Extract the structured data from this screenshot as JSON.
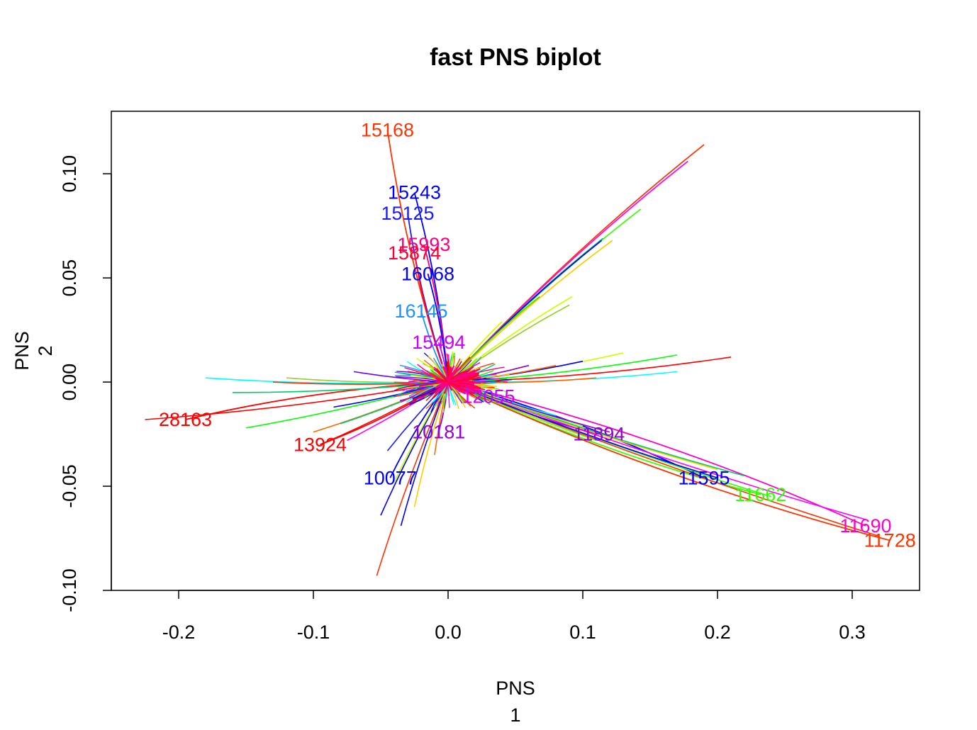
{
  "chart_data": {
    "type": "biplot",
    "title": "fast PNS biplot",
    "xlabel_line1": "PNS",
    "xlabel_line2": "1",
    "ylabel_line1": "PNS",
    "ylabel_line2": "2",
    "xlim": [
      -0.25,
      0.35
    ],
    "ylim": [
      -0.1,
      0.13
    ],
    "x_ticks": [
      -0.2,
      -0.1,
      0.0,
      0.1,
      0.2,
      0.3
    ],
    "x_tick_labels": [
      "-0.2",
      "-0.1",
      "0.0",
      "0.1",
      "0.2",
      "0.3"
    ],
    "y_ticks": [
      -0.1,
      -0.05,
      0.0,
      0.05,
      0.1
    ],
    "y_tick_labels": [
      "-0.10",
      "-0.05",
      "0.00",
      "0.05",
      "0.10"
    ],
    "grid": false,
    "labeled_vectors": [
      {
        "label": "15168",
        "x": -0.045,
        "y": 0.121,
        "color": "#ff3300"
      },
      {
        "label": "15243",
        "x": -0.025,
        "y": 0.091,
        "color": "#0000ff"
      },
      {
        "label": "15125",
        "x": -0.03,
        "y": 0.081,
        "color": "#1a1aff"
      },
      {
        "label": "15993",
        "x": -0.018,
        "y": 0.066,
        "color": "#ff0080"
      },
      {
        "label": "15874",
        "x": -0.025,
        "y": 0.062,
        "color": "#ff0033"
      },
      {
        "label": "16068",
        "x": -0.015,
        "y": 0.052,
        "color": "#0000ff"
      },
      {
        "label": "16145",
        "x": -0.02,
        "y": 0.034,
        "color": "#1e90ff"
      },
      {
        "label": "28163",
        "x": -0.195,
        "y": -0.018,
        "color": "#ff0000"
      },
      {
        "label": "13924",
        "x": -0.095,
        "y": -0.03,
        "color": "#ff0000"
      },
      {
        "label": "10077",
        "x": -0.043,
        "y": -0.046,
        "color": "#0000ff"
      },
      {
        "label": "10181",
        "x": -0.007,
        "y": -0.024,
        "color": "#9400d3"
      },
      {
        "label": "11894",
        "x": 0.112,
        "y": -0.025,
        "color": "#9400d3"
      },
      {
        "label": "11595",
        "x": 0.19,
        "y": -0.046,
        "color": "#0000ff"
      },
      {
        "label": "11662",
        "x": 0.232,
        "y": -0.054,
        "color": "#33ff00"
      },
      {
        "label": "11690",
        "x": 0.31,
        "y": -0.069,
        "color": "#ff00cc"
      },
      {
        "label": "11728",
        "x": 0.328,
        "y": -0.076,
        "color": "#ff3300"
      },
      {
        "label": "12055",
        "x": 0.03,
        "y": -0.007,
        "color": "#cc00ff"
      },
      {
        "label": "15494",
        "x": -0.007,
        "y": 0.019,
        "color": "#cc00ff"
      }
    ],
    "curve_colors": [
      "#ff0000",
      "#ff3300",
      "#ff6600",
      "#ffcc00",
      "#ccff00",
      "#66ff00",
      "#00ff00",
      "#00cc66",
      "#00ffff",
      "#1e90ff",
      "#0000ff",
      "#6600ff",
      "#9400d3",
      "#ff00ff",
      "#ff0080"
    ]
  }
}
